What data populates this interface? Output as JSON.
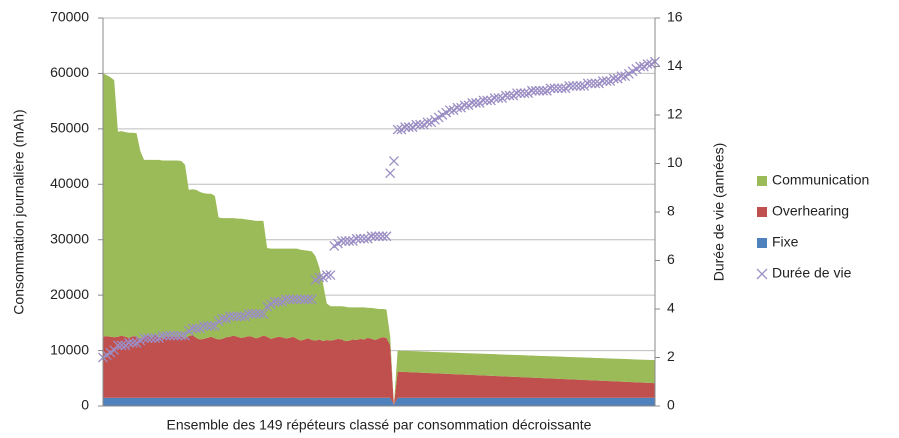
{
  "chart_data": {
    "type": "stacked_area_scatter",
    "y_label": "Consommation journalière (mAh)",
    "y2_label": "Durée de vie (années)",
    "x_label": "Ensemble des 149 répéteurs classé par consommation décroissante",
    "ylim": [
      0,
      70000
    ],
    "yticks": [
      0,
      10000,
      20000,
      30000,
      40000,
      50000,
      60000,
      70000
    ],
    "y2lim": [
      0,
      16
    ],
    "y2ticks": [
      0,
      2,
      4,
      6,
      8,
      10,
      12,
      14,
      16
    ],
    "grid": true,
    "legend": "right",
    "series": [
      {
        "name": "Fixe",
        "color": "#4f81bd",
        "values": [
          1500,
          1500,
          1500,
          1500,
          1500,
          1500,
          1500,
          1500,
          1500,
          1500,
          1500,
          1500,
          1500,
          1500,
          1500,
          1500,
          1500,
          1500,
          1500,
          1500,
          1500,
          1500,
          1500,
          1500,
          1500,
          1500,
          1500,
          1500,
          1500,
          1500,
          1500,
          1500,
          1500,
          1500,
          1500,
          1500,
          1500,
          1500,
          1500,
          1500,
          1500,
          1500,
          1500,
          1500,
          1500,
          1500,
          1500,
          1500,
          1500,
          1500,
          1500,
          1500,
          1500,
          1500,
          1500,
          1500,
          1500,
          1500,
          1500,
          1500,
          1500,
          1500,
          1500,
          1500,
          1500,
          1500,
          1500,
          1500,
          1500,
          1500,
          1500,
          1500,
          1500,
          1500,
          1500,
          1500,
          1500,
          1500,
          200,
          1500,
          1500,
          1500,
          1500,
          1500,
          1500,
          1500,
          1500,
          1500,
          1500,
          1500,
          1500,
          1500,
          1500,
          1500,
          1500,
          1500,
          1500,
          1500,
          1500,
          1500,
          1500,
          1500,
          1500,
          1500,
          1500,
          1500,
          1500,
          1500,
          1500,
          1500,
          1500,
          1500,
          1500,
          1500,
          1500,
          1500,
          1500,
          1500,
          1500,
          1500,
          1500,
          1500,
          1500,
          1500,
          1500,
          1500,
          1500,
          1500,
          1500,
          1500,
          1500,
          1500,
          1500,
          1500,
          1500,
          1500,
          1500,
          1500,
          1500,
          1500,
          1500,
          1500,
          1500,
          1500,
          1500,
          1500,
          1500,
          1500,
          1500
        ]
      },
      {
        "name": "Overhearing",
        "color": "#c0504d",
        "values": [
          11000,
          11100,
          11000,
          10900,
          11000,
          11200,
          11000,
          10800,
          11100,
          11000,
          10700,
          11000,
          11200,
          10900,
          11300,
          11000,
          10700,
          11100,
          11000,
          11200,
          10900,
          11000,
          10700,
          11100,
          11300,
          10800,
          10500,
          10600,
          10800,
          11000,
          10700,
          10500,
          10600,
          10900,
          11000,
          11200,
          11000,
          10800,
          10900,
          11100,
          11000,
          10700,
          10900,
          11200,
          11000,
          10600,
          10800,
          11000,
          10900,
          10700,
          10800,
          11000,
          10600,
          10300,
          10500,
          10700,
          10400,
          10300,
          10500,
          10200,
          10400,
          10300,
          10400,
          10600,
          10500,
          10200,
          10300,
          10500,
          10400,
          10600,
          10500,
          10800,
          10600,
          10400,
          10700,
          10900,
          10800,
          9500,
          0,
          4700,
          4670,
          4640,
          4610,
          4580,
          4550,
          4520,
          4490,
          4460,
          4430,
          4400,
          4370,
          4340,
          4310,
          4280,
          4250,
          4220,
          4190,
          4160,
          4130,
          4100,
          4070,
          4040,
          4010,
          3980,
          3950,
          3920,
          3890,
          3860,
          3830,
          3800,
          3770,
          3740,
          3710,
          3680,
          3650,
          3620,
          3590,
          3560,
          3530,
          3500,
          3470,
          3440,
          3410,
          3380,
          3350,
          3320,
          3290,
          3260,
          3230,
          3200,
          3170,
          3140,
          3110,
          3080,
          3050,
          3020,
          2990,
          2960,
          2930,
          2900,
          2870,
          2840,
          2810,
          2780,
          2750,
          2720,
          2690,
          2660,
          2630
        ]
      },
      {
        "name": "Communication",
        "color": "#9bbb59",
        "values": [
          47500,
          47100,
          46800,
          46400,
          37000,
          36900,
          36900,
          37000,
          36700,
          36700,
          33800,
          31900,
          31700,
          32000,
          31600,
          31900,
          32100,
          31700,
          31800,
          31600,
          31900,
          31700,
          31300,
          26400,
          26300,
          26700,
          26600,
          26300,
          26000,
          25800,
          25700,
          22000,
          21800,
          21500,
          21400,
          21200,
          21300,
          21500,
          21300,
          21000,
          21000,
          21200,
          21000,
          20700,
          16000,
          16300,
          16100,
          15900,
          16000,
          16200,
          16100,
          15900,
          16300,
          16400,
          16100,
          15800,
          16000,
          15200,
          13000,
          10300,
          6600,
          6200,
          6100,
          5900,
          6000,
          6200,
          6000,
          5800,
          5900,
          5700,
          5800,
          5400,
          5600,
          5700,
          5300,
          5100,
          5100,
          1500,
          0,
          3800,
          3800,
          3810,
          3810,
          3820,
          3820,
          3830,
          3830,
          3840,
          3840,
          3850,
          3850,
          3860,
          3860,
          3870,
          3870,
          3880,
          3880,
          3890,
          3890,
          3900,
          3900,
          3910,
          3910,
          3920,
          3920,
          3930,
          3930,
          3940,
          3940,
          3950,
          3950,
          3960,
          3960,
          3970,
          3970,
          3980,
          3980,
          3990,
          3990,
          4000,
          4000,
          4010,
          4010,
          4020,
          4020,
          4030,
          4030,
          4040,
          4040,
          4050,
          4050,
          4060,
          4060,
          4070,
          4070,
          4080,
          4080,
          4090,
          4090,
          4100,
          4100,
          4110,
          4110,
          4120,
          4120,
          4130,
          4130,
          4140,
          4140
        ]
      },
      {
        "name": "Durée de vie",
        "color": "#9b8ec4",
        "axis": "y2",
        "marker": "x",
        "values": [
          2.0,
          2.1,
          2.2,
          2.3,
          2.5,
          2.5,
          2.5,
          2.6,
          2.6,
          2.6,
          2.7,
          2.8,
          2.8,
          2.8,
          2.8,
          2.8,
          2.9,
          2.9,
          2.9,
          2.9,
          2.9,
          2.9,
          2.9,
          3.1,
          3.2,
          3.2,
          3.2,
          3.3,
          3.3,
          3.3,
          3.3,
          3.5,
          3.6,
          3.6,
          3.7,
          3.7,
          3.7,
          3.7,
          3.7,
          3.8,
          3.8,
          3.8,
          3.8,
          3.8,
          4.1,
          4.2,
          4.3,
          4.3,
          4.3,
          4.4,
          4.4,
          4.4,
          4.4,
          4.4,
          4.4,
          4.4,
          4.4,
          5.2,
          5.3,
          5.3,
          5.4,
          5.4,
          6.6,
          6.7,
          6.8,
          6.8,
          6.8,
          6.8,
          6.9,
          6.9,
          6.9,
          6.9,
          7.0,
          7.0,
          7.0,
          7.0,
          7.0,
          9.6,
          10.1,
          11.4,
          11.4,
          11.5,
          11.5,
          11.5,
          11.6,
          11.6,
          11.6,
          11.7,
          11.7,
          11.8,
          11.9,
          12.0,
          12.1,
          12.2,
          12.2,
          12.3,
          12.3,
          12.4,
          12.4,
          12.5,
          12.5,
          12.5,
          12.6,
          12.6,
          12.6,
          12.7,
          12.7,
          12.7,
          12.8,
          12.8,
          12.8,
          12.9,
          12.9,
          12.9,
          12.9,
          13.0,
          13.0,
          13.0,
          13.0,
          13.0,
          13.1,
          13.1,
          13.1,
          13.1,
          13.1,
          13.2,
          13.2,
          13.2,
          13.2,
          13.2,
          13.3,
          13.3,
          13.3,
          13.3,
          13.4,
          13.4,
          13.4,
          13.5,
          13.5,
          13.6,
          13.6,
          13.7,
          13.8,
          13.9,
          14.0,
          14.0,
          14.1,
          14.1,
          14.2
        ]
      }
    ]
  }
}
